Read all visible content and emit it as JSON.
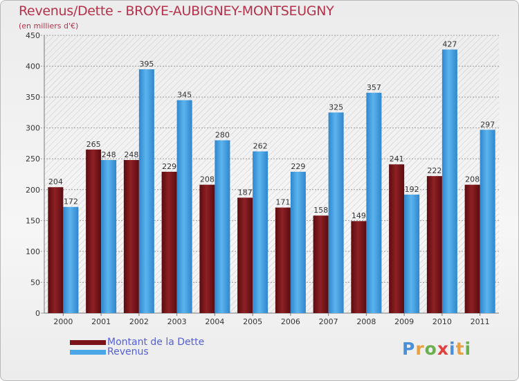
{
  "title": "Revenus/Dette - BROYE-AUBIGNEY-MONTSEUGNY",
  "subtitle": "(en milliers d'€)",
  "brand": {
    "letters": [
      {
        "char": "P",
        "color": "#4a90d9"
      },
      {
        "char": "r",
        "color": "#e8a040"
      },
      {
        "char": "o",
        "color": "#6ab04c"
      },
      {
        "char": "x",
        "color": "#e04040"
      },
      {
        "char": "i",
        "color": "#4a90d9"
      },
      {
        "char": "t",
        "color": "#e8a040"
      },
      {
        "char": "i",
        "color": "#6ab04c"
      }
    ]
  },
  "chart_data": {
    "type": "bar",
    "categories": [
      "2000",
      "2001",
      "2002",
      "2003",
      "2004",
      "2005",
      "2006",
      "2007",
      "2008",
      "2009",
      "2010",
      "2011"
    ],
    "series": [
      {
        "name": "Montant de la Dette",
        "color": "#7a1418",
        "values": [
          204,
          265,
          248,
          229,
          208,
          187,
          171,
          158,
          149,
          241,
          222,
          208
        ]
      },
      {
        "name": "Revenus",
        "color": "#4aa6e6",
        "values": [
          172,
          248,
          395,
          345,
          280,
          262,
          229,
          325,
          357,
          192,
          427,
          297
        ]
      }
    ],
    "ylim": [
      0,
      450
    ],
    "yticks": [
      0,
      50,
      100,
      150,
      200,
      250,
      300,
      350,
      400,
      450
    ],
    "grid": true,
    "legend": "bottom-left"
  }
}
